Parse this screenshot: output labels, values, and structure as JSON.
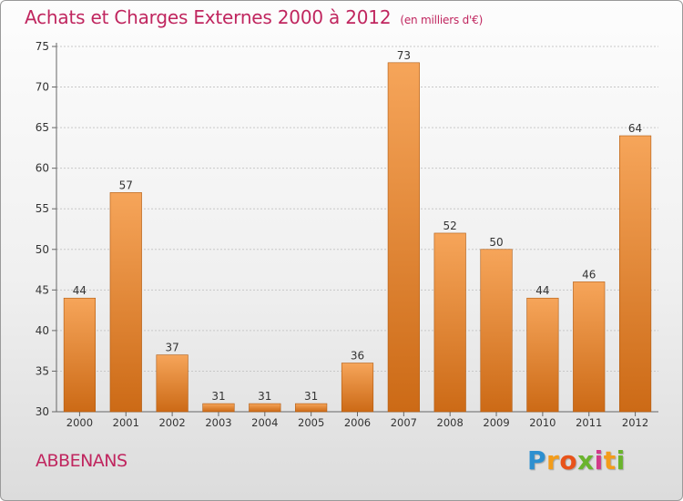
{
  "title": "Achats et Charges Externes 2000 à 2012",
  "unit": "(en milliers d'€)",
  "place": "ABBENANS",
  "logo": {
    "text": "Proxiti"
  },
  "colors": {
    "title": "#c0265f",
    "bar_light": "#f6a55a",
    "bar_dark": "#cc6a16"
  },
  "chart_data": {
    "type": "bar",
    "title": "Achats et Charges Externes 2000 à 2012",
    "categories": [
      "2000",
      "2001",
      "2002",
      "2003",
      "2004",
      "2005",
      "2006",
      "2007",
      "2008",
      "2009",
      "2010",
      "2011",
      "2012"
    ],
    "values": [
      44,
      57,
      37,
      31,
      31,
      31,
      36,
      73,
      52,
      50,
      44,
      46,
      64
    ],
    "ylim": [
      30,
      75
    ],
    "yticks": [
      30,
      35,
      40,
      45,
      50,
      55,
      60,
      65,
      70,
      75
    ],
    "grid": true
  }
}
